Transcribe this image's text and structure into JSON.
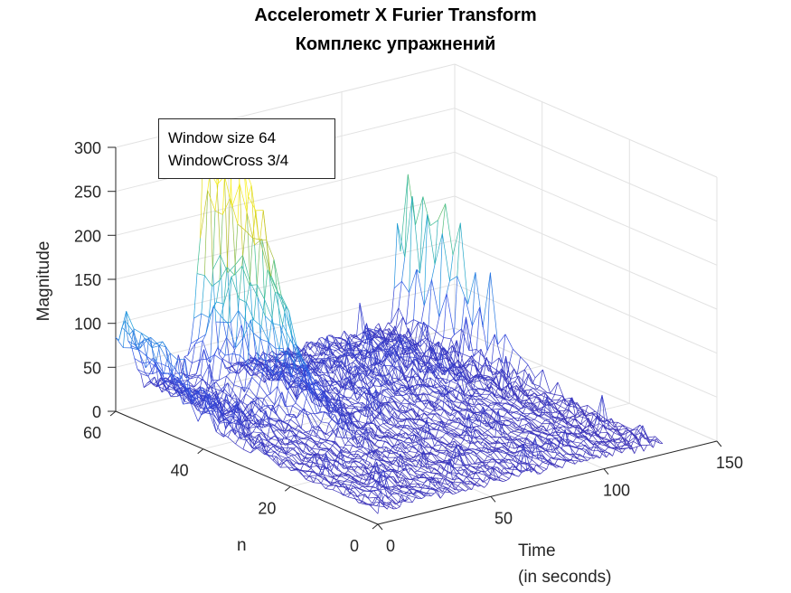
{
  "chart_data": {
    "type": "surface",
    "title": "Accelerometr X Furier Transform",
    "subtitle": "Комплекс упражнений",
    "annotation": [
      "Window size 64",
      "WindowCross 3/4"
    ],
    "xlabel": "Time",
    "xlabel_unit": "(in seconds)",
    "ylabel": "n",
    "zlabel": "Magnitude",
    "xlim": [
      0,
      150
    ],
    "ylim": [
      0,
      60
    ],
    "zlim": [
      0,
      300
    ],
    "x_ticks": [
      "0",
      "50",
      "100",
      "150"
    ],
    "y_ticks": [
      "0",
      "20",
      "40",
      "60"
    ],
    "z_ticks": [
      "0",
      "50",
      "100",
      "150",
      "200",
      "250",
      "300"
    ],
    "grid": true,
    "colormap": "parula",
    "peaks": [
      {
        "time": 40,
        "n": 60,
        "magnitude": 230
      },
      {
        "time": 136,
        "n": 60,
        "magnitude": 240
      },
      {
        "time": 126,
        "n": 55,
        "magnitude": 185
      },
      {
        "time": 130,
        "n": 40,
        "magnitude": 165
      },
      {
        "time": 38,
        "n": 50,
        "magnitude": 140
      },
      {
        "time": 3,
        "n": 57,
        "magnitude": 80
      }
    ]
  }
}
